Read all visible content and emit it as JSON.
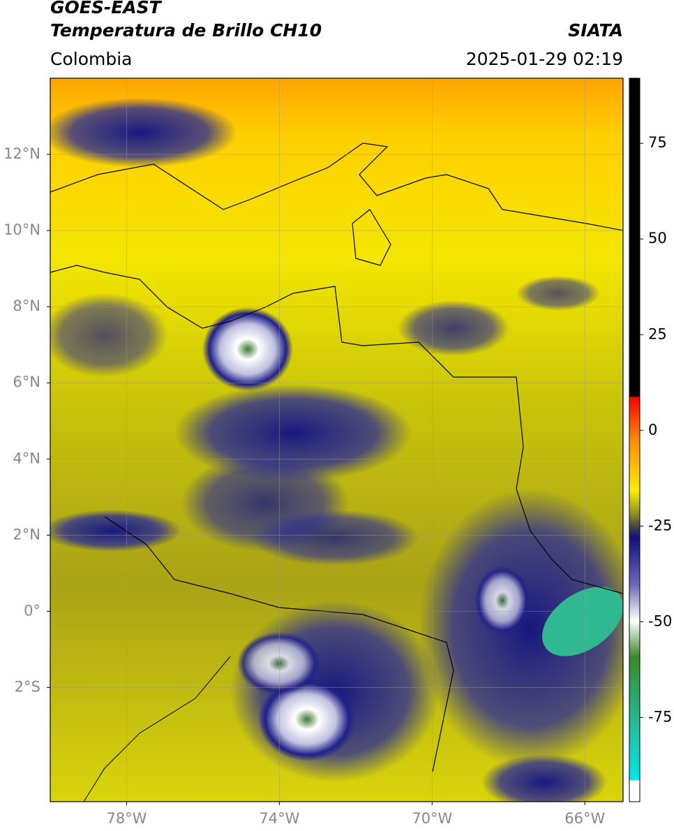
{
  "map": {
    "title": "GOES-EAST",
    "subtitle": "Temperatura de Brillo CH10",
    "source": "SIATA",
    "region": "Colombia",
    "datetime": "2025-01-29 02:19",
    "xlim": [
      -80,
      -65
    ],
    "ylim": [
      -5,
      14
    ],
    "xticks": [
      {
        "value": -78,
        "label": "78°W"
      },
      {
        "value": -74,
        "label": "74°W"
      },
      {
        "value": -70,
        "label": "70°W"
      },
      {
        "value": -66,
        "label": "66°W"
      }
    ],
    "yticks": [
      {
        "value": 12,
        "label": "12°N"
      },
      {
        "value": 10,
        "label": "10°N"
      },
      {
        "value": 8,
        "label": "8°N"
      },
      {
        "value": 6,
        "label": "6°N"
      },
      {
        "value": 4,
        "label": "4°N"
      },
      {
        "value": 2,
        "label": "2°N"
      },
      {
        "value": 0,
        "label": "0°"
      },
      {
        "value": -2,
        "label": "2°S"
      }
    ],
    "grid": true,
    "colorbar": {
      "lim": [
        -97,
        92
      ],
      "ticks": [
        75,
        50,
        25,
        0,
        -25,
        -50,
        -75
      ]
    }
  }
}
